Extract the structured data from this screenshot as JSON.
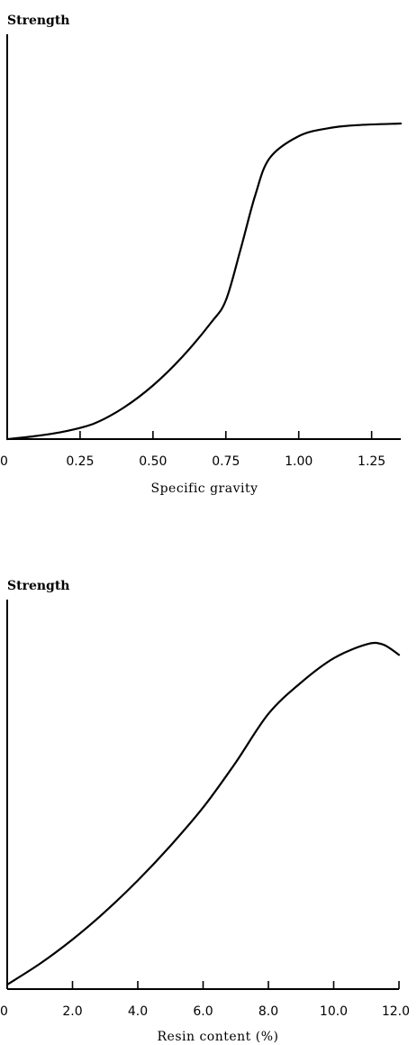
{
  "chart_data": [
    {
      "type": "line",
      "title": "Strength",
      "xlabel": "Specific gravity",
      "ylabel": "",
      "xlim": [
        0,
        1.35
      ],
      "ylim": [
        0,
        1
      ],
      "x_ticks": [
        "0",
        "0.25",
        "0.50",
        "0.75",
        "1.00",
        "1.25"
      ],
      "x_tick_values": [
        0,
        0.25,
        0.5,
        0.75,
        1.0,
        1.25
      ],
      "series": [
        {
          "x": [
            0,
            0.1,
            0.2,
            0.3,
            0.4,
            0.5,
            0.6,
            0.7,
            0.75,
            0.8,
            0.85,
            0.9,
            1.0,
            1.1,
            1.2,
            1.35
          ],
          "y": [
            0,
            0.01,
            0.025,
            0.05,
            0.1,
            0.17,
            0.26,
            0.37,
            0.44,
            0.6,
            0.77,
            0.89,
            0.96,
            0.985,
            0.995,
            1.0
          ]
        }
      ],
      "grid": false
    },
    {
      "type": "line",
      "title": "Strength",
      "xlabel": "Resin content (%)",
      "ylabel": "",
      "xlim": [
        0,
        12.0
      ],
      "ylim": [
        0,
        1
      ],
      "x_ticks": [
        "0",
        "2.0",
        "4.0",
        "6.0",
        "8.0",
        "10.0",
        "12.0"
      ],
      "x_tick_values": [
        0,
        2,
        4,
        6,
        8,
        10,
        12
      ],
      "series": [
        {
          "x": [
            0,
            1,
            2,
            3,
            4,
            5,
            6,
            7,
            8,
            9,
            10,
            11,
            11.5,
            12
          ],
          "y": [
            0,
            0.06,
            0.13,
            0.21,
            0.3,
            0.4,
            0.51,
            0.64,
            0.78,
            0.87,
            0.94,
            0.98,
            0.98,
            0.95
          ]
        }
      ],
      "grid": false
    }
  ]
}
